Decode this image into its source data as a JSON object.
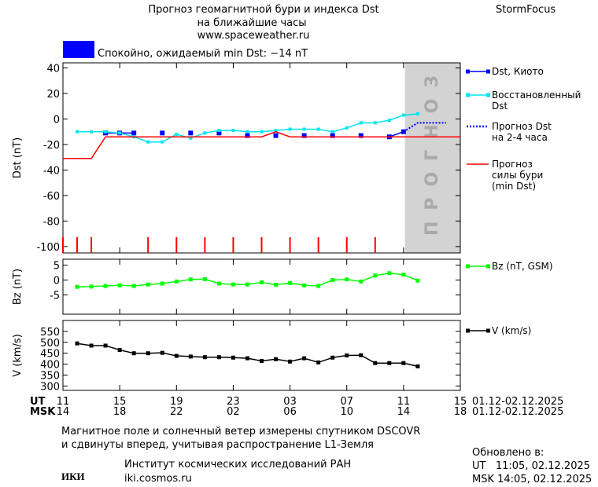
{
  "header": {
    "title": "Прогноз геомагнитной бури и индекса Dst",
    "subtitle": "на ближайшие часы",
    "url": "www.spaceweather.ru",
    "brand": "StormFocus"
  },
  "status": {
    "color": "#0000ff",
    "text": "Спокойно, ожидаемый min Dst: −14 nT"
  },
  "chart_data": [
    {
      "type": "line",
      "ylabel": "Dst (nT)",
      "xlim": [
        0,
        28
      ],
      "ylim": [
        -105,
        44
      ],
      "yticks": [
        -100,
        -80,
        -60,
        -40,
        -20,
        0,
        20,
        40
      ],
      "forecast_region": {
        "x": [
          24.1,
          28
        ],
        "label": "ПРОГНОЗ",
        "color": "#d3d3d3"
      },
      "storm_markers": {
        "color": "#ff0000",
        "x": [
          0,
          1,
          2,
          6,
          8,
          10,
          12,
          14,
          16,
          18,
          20,
          22
        ]
      },
      "series": [
        {
          "name": "Dst, Киото",
          "color": "#0000ff",
          "marker": "square",
          "marker_size": 6,
          "x": [
            3,
            4,
            5,
            6,
            7,
            8,
            9,
            10,
            11,
            12,
            13,
            14,
            15,
            16,
            17,
            18,
            19,
            20,
            21,
            22,
            23,
            24
          ],
          "values": [
            -11,
            -11,
            -11,
            null,
            -11,
            null,
            -11,
            null,
            -11,
            null,
            -13,
            null,
            -13,
            null,
            -13,
            null,
            -13,
            null,
            -13,
            null,
            -14,
            -10
          ]
        },
        {
          "name": "Восстановленный\nDst",
          "color": "#00e5ee",
          "marker": "square",
          "marker_size": 4,
          "x": [
            1,
            2,
            3,
            4,
            5,
            6,
            7,
            8,
            9,
            10,
            11,
            12,
            13,
            14,
            15,
            16,
            17,
            18,
            19,
            20,
            21,
            22,
            23,
            24,
            25
          ],
          "values": [
            -10,
            -10,
            -10,
            -11,
            -14,
            -18,
            -18,
            -12,
            -15,
            -11,
            -9,
            -9,
            -10,
            -10,
            -9,
            -8,
            -8,
            -8,
            -10,
            -7,
            -3,
            -3,
            -1,
            3,
            4
          ]
        },
        {
          "name": "Прогноз Dst\nна 2-4 часа",
          "color": "#0000ff",
          "dash": "dotted",
          "x": [
            24,
            25,
            26,
            27
          ],
          "values": [
            -10,
            -3,
            -3,
            -3
          ]
        },
        {
          "name": "Прогноз\nсилы бури\n(min Dst)",
          "color": "#ff0000",
          "x": [
            0,
            2,
            3,
            14,
            15,
            16,
            28
          ],
          "values": [
            -31,
            -31,
            -14,
            -14,
            -10,
            -14,
            -14
          ]
        }
      ]
    },
    {
      "type": "line",
      "ylabel": "Bz (nT)",
      "xlim": [
        0,
        28
      ],
      "ylim": [
        -11.5,
        7
      ],
      "yticks": [
        -5,
        0,
        5
      ],
      "series": [
        {
          "name": "Bz (nT, GSM)",
          "color": "#00ff00",
          "marker": "square",
          "marker_size": 5,
          "x": [
            1,
            2,
            3,
            4,
            5,
            6,
            7,
            8,
            9,
            10,
            11,
            12,
            13,
            14,
            15,
            16,
            17,
            18,
            19,
            20,
            21,
            22,
            23,
            24,
            25
          ],
          "values": [
            -2.3,
            -2.2,
            -2,
            -1.8,
            -2,
            -1.5,
            -1.2,
            -0.5,
            0.2,
            0.3,
            -1.2,
            -1.5,
            -1.5,
            -0.8,
            -1.6,
            -1,
            -1.8,
            -2,
            0,
            0.2,
            -0.5,
            1.5,
            2.3,
            1.8,
            -0.2
          ]
        }
      ]
    },
    {
      "type": "line",
      "ylabel": "V (km/s)",
      "xlim": [
        0,
        28
      ],
      "ylim": [
        280,
        600
      ],
      "yticks": [
        300,
        350,
        400,
        450,
        500,
        550
      ],
      "xticks": [
        {
          "value": 0,
          "label": "11"
        },
        {
          "value": 4,
          "label": "15"
        },
        {
          "value": 8,
          "label": "19"
        },
        {
          "value": 12,
          "label": "23"
        },
        {
          "value": 16,
          "label": "03"
        },
        {
          "value": 20,
          "label": "07"
        },
        {
          "value": 24,
          "label": "11"
        },
        {
          "value": 28,
          "label": "15"
        }
      ],
      "x2ticks": [
        {
          "value": 0,
          "label": "14"
        },
        {
          "value": 4,
          "label": "18"
        },
        {
          "value": 8,
          "label": "22"
        },
        {
          "value": 12,
          "label": "02"
        },
        {
          "value": 16,
          "label": "06"
        },
        {
          "value": 20,
          "label": "10"
        },
        {
          "value": 24,
          "label": "14"
        },
        {
          "value": 28,
          "label": "18"
        }
      ],
      "xlabel": "UT",
      "x2label": "MSK",
      "xrange": "01.12-02.12.2025",
      "x2range": "01.12-02.12.2025",
      "series": [
        {
          "name": "V (km/s)",
          "color": "#000000",
          "marker": "square",
          "marker_size": 5,
          "x": [
            1,
            2,
            3,
            4,
            5,
            6,
            7,
            8,
            9,
            10,
            11,
            12,
            13,
            14,
            15,
            16,
            17,
            18,
            19,
            20,
            21,
            22,
            23,
            24,
            25
          ],
          "values": [
            495,
            485,
            485,
            465,
            450,
            450,
            452,
            438,
            435,
            432,
            432,
            430,
            427,
            415,
            423,
            412,
            427,
            408,
            430,
            440,
            441,
            405,
            405,
            405,
            390
          ]
        }
      ]
    }
  ],
  "footer": {
    "note": [
      "Магнитное поле и солнечный ветер измерены спутником DSCOVR",
      "и сдвинуты вперед, учитывая распространение L1-Земля"
    ],
    "updated_title": "Обновлено в:",
    "updated": [
      "UT   11:05, 02.12.2025",
      "MSK 14:05, 02.12.2025"
    ],
    "logo": "ИКИ",
    "institute": "Институт космических исследований РАН",
    "site": "iki.cosmos.ru"
  }
}
